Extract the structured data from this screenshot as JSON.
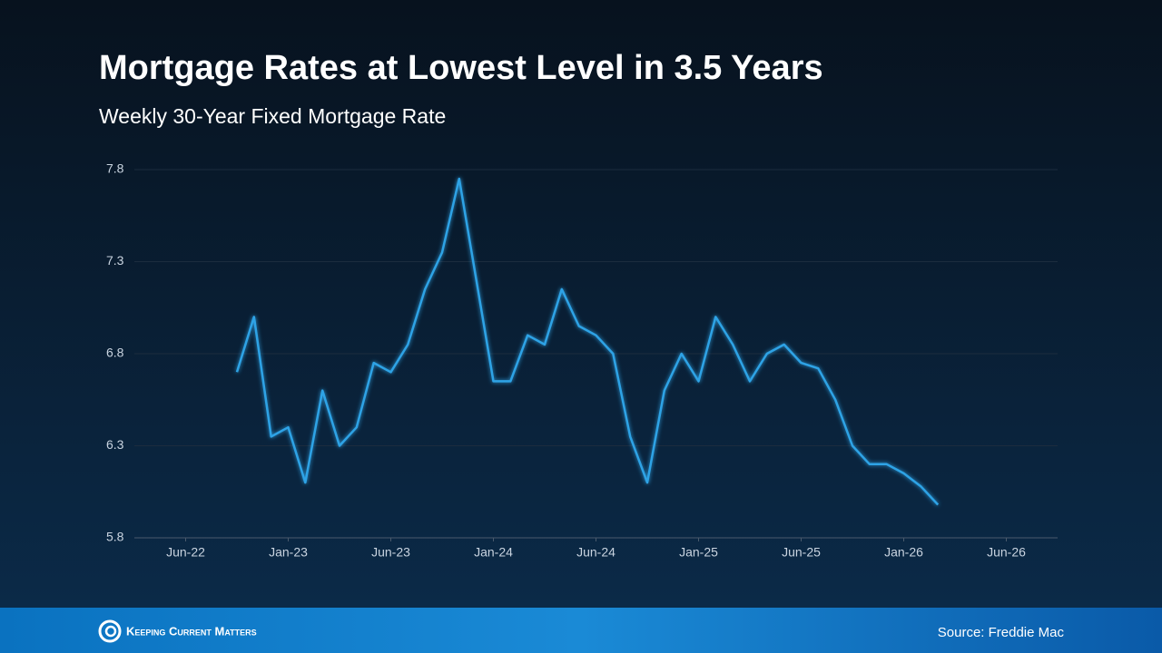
{
  "chart_data": {
    "type": "line",
    "title": "Mortgage Rates at Lowest Level in 3.5 Years",
    "subtitle": "Weekly 30-Year Fixed Mortgage Rate",
    "source": "Source: Freddie Mac",
    "brand": "Keeping Current Matters",
    "x": [
      "2022-09",
      "2022-10",
      "2022-11",
      "2022-12",
      "2023-01",
      "2023-02",
      "2023-03",
      "2023-04",
      "2023-05",
      "2023-06",
      "2023-07",
      "2023-08",
      "2023-09",
      "2023-10",
      "2023-11",
      "2023-12",
      "2024-01",
      "2024-02",
      "2024-03",
      "2024-04",
      "2024-05",
      "2024-06",
      "2024-07",
      "2024-08",
      "2024-09",
      "2024-10",
      "2024-11",
      "2024-12",
      "2025-01",
      "2025-02",
      "2025-03",
      "2025-04",
      "2025-05",
      "2025-06",
      "2025-07",
      "2025-08",
      "2025-09",
      "2025-10",
      "2025-11",
      "2025-12",
      "2026-01",
      "2026-02"
    ],
    "series": [
      {
        "color": "#2ea3e6",
        "values": [
          6.7,
          7.0,
          6.35,
          6.4,
          6.1,
          6.6,
          6.3,
          6.4,
          6.75,
          6.7,
          6.85,
          7.15,
          7.35,
          7.75,
          7.2,
          6.65,
          6.65,
          6.9,
          6.85,
          7.15,
          6.95,
          6.9,
          6.8,
          6.35,
          6.1,
          6.6,
          6.8,
          6.65,
          7.0,
          6.85,
          6.65,
          6.8,
          6.85,
          6.75,
          6.72,
          6.55,
          6.3,
          6.2,
          6.2,
          6.15,
          6.08,
          5.98
        ]
      }
    ],
    "xlim": [
      "2022-03",
      "2026-09"
    ],
    "xticks": [
      {
        "value": "2022-06",
        "label": "Jun-22"
      },
      {
        "value": "2022-12",
        "label": "Jan-23"
      },
      {
        "value": "2023-06",
        "label": "Jun-23"
      },
      {
        "value": "2023-12",
        "label": "Jan-24"
      },
      {
        "value": "2024-06",
        "label": "Jun-24"
      },
      {
        "value": "2024-12",
        "label": "Jan-25"
      },
      {
        "value": "2025-06",
        "label": "Jun-25"
      },
      {
        "value": "2025-12",
        "label": "Jan-26"
      },
      {
        "value": "2026-06",
        "label": "Jun-26"
      }
    ],
    "ylim": [
      5.8,
      7.8
    ],
    "yticks": [
      5.8,
      6.3,
      6.8,
      7.3,
      7.8
    ],
    "grid": true
  }
}
